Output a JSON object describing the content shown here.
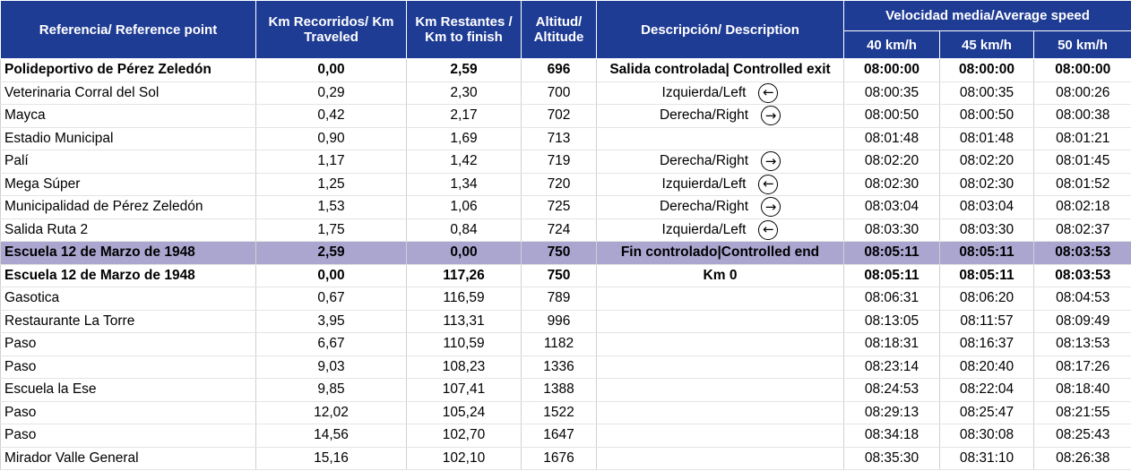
{
  "headers": {
    "ref": "Referencia/ Reference point",
    "km_traveled": "Km Recorridos/ Km Traveled",
    "km_left": "Km Restantes / Km to finish",
    "altitude": "Altitud/ Altitude",
    "description": "Descripción/ Description",
    "avg_speed": "Velocidad media/Average speed",
    "speeds": [
      "40 km/h",
      "45 km/h",
      "50 km/h"
    ]
  },
  "rows": [
    {
      "ref": "Polideportivo de Pérez Zeledón",
      "km": "0,00",
      "left": "2,59",
      "alt": "696",
      "desc": "Salida controlada| Controlled exit",
      "arrow": "",
      "t40": "08:00:00",
      "t45": "08:00:00",
      "t50": "08:00:00",
      "style": "bold"
    },
    {
      "ref": "Veterinaria Corral del Sol",
      "km": "0,29",
      "left": "2,30",
      "alt": "700",
      "desc": "Izquierda/Left",
      "arrow": "left",
      "t40": "08:00:35",
      "t45": "08:00:35",
      "t50": "08:00:26",
      "style": ""
    },
    {
      "ref": "Mayca",
      "km": "0,42",
      "left": "2,17",
      "alt": "702",
      "desc": "Derecha/Right",
      "arrow": "right",
      "t40": "08:00:50",
      "t45": "08:00:50",
      "t50": "08:00:38",
      "style": ""
    },
    {
      "ref": "Estadio Municipal",
      "km": "0,90",
      "left": "1,69",
      "alt": "713",
      "desc": "",
      "arrow": "",
      "t40": "08:01:48",
      "t45": "08:01:48",
      "t50": "08:01:21",
      "style": ""
    },
    {
      "ref": "Palí",
      "km": "1,17",
      "left": "1,42",
      "alt": "719",
      "desc": "Derecha/Right",
      "arrow": "right",
      "t40": "08:02:20",
      "t45": "08:02:20",
      "t50": "08:01:45",
      "style": ""
    },
    {
      "ref": "Mega Súper",
      "km": "1,25",
      "left": "1,34",
      "alt": "720",
      "desc": "Izquierda/Left",
      "arrow": "left",
      "t40": "08:02:30",
      "t45": "08:02:30",
      "t50": "08:01:52",
      "style": ""
    },
    {
      "ref": "Municipalidad de Pérez Zeledón",
      "km": "1,53",
      "left": "1,06",
      "alt": "725",
      "desc": "Derecha/Right",
      "arrow": "right",
      "t40": "08:03:04",
      "t45": "08:03:04",
      "t50": "08:02:18",
      "style": ""
    },
    {
      "ref": "Salida Ruta 2",
      "km": "1,75",
      "left": "0,84",
      "alt": "724",
      "desc": "Izquierda/Left",
      "arrow": "left",
      "t40": "08:03:30",
      "t45": "08:03:30",
      "t50": "08:02:37",
      "style": ""
    },
    {
      "ref": "Escuela 12 de Marzo de 1948",
      "km": "2,59",
      "left": "0,00",
      "alt": "750",
      "desc": "Fin controlado|Controlled end",
      "arrow": "",
      "t40": "08:05:11",
      "t45": "08:05:11",
      "t50": "08:03:53",
      "style": "bold hl"
    },
    {
      "ref": "Escuela 12 de Marzo de 1948",
      "km": "0,00",
      "left": "117,26",
      "alt": "750",
      "desc": "Km 0",
      "arrow": "",
      "t40": "08:05:11",
      "t45": "08:05:11",
      "t50": "08:03:53",
      "style": "bold"
    },
    {
      "ref": "Gasotica",
      "km": "0,67",
      "left": "116,59",
      "alt": "789",
      "desc": "",
      "arrow": "",
      "t40": "08:06:31",
      "t45": "08:06:20",
      "t50": "08:04:53",
      "style": ""
    },
    {
      "ref": "Restaurante La Torre",
      "km": "3,95",
      "left": "113,31",
      "alt": "996",
      "desc": "",
      "arrow": "",
      "t40": "08:13:05",
      "t45": "08:11:57",
      "t50": "08:09:49",
      "style": ""
    },
    {
      "ref": "Paso",
      "km": "6,67",
      "left": "110,59",
      "alt": "1182",
      "desc": "",
      "arrow": "",
      "t40": "08:18:31",
      "t45": "08:16:37",
      "t50": "08:13:53",
      "style": ""
    },
    {
      "ref": "Paso",
      "km": "9,03",
      "left": "108,23",
      "alt": "1336",
      "desc": "",
      "arrow": "",
      "t40": "08:23:14",
      "t45": "08:20:40",
      "t50": "08:17:26",
      "style": ""
    },
    {
      "ref": "Escuela la Ese",
      "km": "9,85",
      "left": "107,41",
      "alt": "1388",
      "desc": "",
      "arrow": "",
      "t40": "08:24:53",
      "t45": "08:22:04",
      "t50": "08:18:40",
      "style": ""
    },
    {
      "ref": "Paso",
      "km": "12,02",
      "left": "105,24",
      "alt": "1522",
      "desc": "",
      "arrow": "",
      "t40": "08:29:13",
      "t45": "08:25:47",
      "t50": "08:21:55",
      "style": ""
    },
    {
      "ref": "Paso",
      "km": "14,56",
      "left": "102,70",
      "alt": "1647",
      "desc": "",
      "arrow": "",
      "t40": "08:34:18",
      "t45": "08:30:08",
      "t50": "08:25:43",
      "style": ""
    },
    {
      "ref": "Mirador Valle General",
      "km": "15,16",
      "left": "102,10",
      "alt": "1676",
      "desc": "",
      "arrow": "",
      "t40": "08:35:30",
      "t45": "08:31:10",
      "t50": "08:26:38",
      "style": ""
    }
  ]
}
